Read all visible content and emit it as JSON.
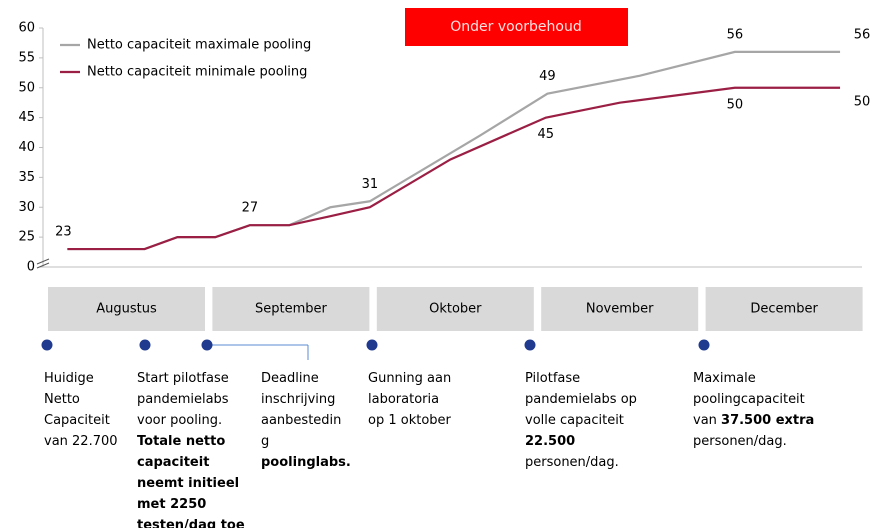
{
  "chart_data": {
    "type": "line",
    "badge": "Onder voorbehoud",
    "ylim": [
      20,
      60
    ],
    "yticks": [
      0,
      25,
      30,
      35,
      40,
      45,
      50,
      55,
      60
    ],
    "axis_break": true,
    "xlim": [
      0,
      5
    ],
    "legend": "top-left",
    "series": [
      {
        "name": "Netto capaciteit maximale pooling",
        "color": "#a6a6a6",
        "x": [
          0.13,
          0.6,
          0.8,
          1.03,
          1.24,
          1.48,
          1.73,
          1.97,
          2.64,
          3.05,
          3.61,
          4.19,
          4.83
        ],
        "values": [
          23,
          23,
          25,
          25,
          27,
          27,
          30,
          31,
          42,
          49,
          52,
          56,
          56
        ],
        "value_labels": [
          "23",
          null,
          null,
          null,
          "27",
          null,
          null,
          "31",
          null,
          "49",
          null,
          "56",
          "56"
        ]
      },
      {
        "name": "Netto capaciteit minimale pooling",
        "color": "#9b1f45",
        "x": [
          0.13,
          0.6,
          0.8,
          1.03,
          1.24,
          1.48,
          1.73,
          1.97,
          2.46,
          3.04,
          3.49,
          4.19,
          4.83
        ],
        "values": [
          23,
          23,
          25,
          25,
          27,
          27,
          28.5,
          30,
          38,
          45,
          47.5,
          50,
          50
        ],
        "value_labels": [
          null,
          null,
          null,
          null,
          null,
          null,
          null,
          null,
          null,
          "45",
          null,
          "50",
          "50"
        ]
      }
    ],
    "categories": [
      "Augustus",
      "September",
      "Oktober",
      "November",
      "December"
    ],
    "milestones": [
      {
        "lines": [
          [
            "Huidige"
          ],
          [
            "Netto"
          ],
          [
            "Capaciteit"
          ],
          [
            "van 22.700"
          ]
        ]
      },
      {
        "lines": [
          [
            "Start pilotfase"
          ],
          [
            "pandemielabs"
          ],
          [
            "voor pooling."
          ],
          [
            {
              "bold": "Totale netto"
            }
          ],
          [
            {
              "bold": "capaciteit"
            }
          ],
          [
            {
              "bold": "neemt initieel"
            }
          ],
          [
            {
              "bold": "met 2250"
            }
          ],
          [
            {
              "bold": "testen/dag toe"
            }
          ]
        ]
      },
      {
        "lines": [
          [
            "Deadline"
          ],
          [
            "inschrijving"
          ],
          [
            "aanbestedin"
          ],
          [
            "g"
          ],
          [
            {
              "bold": "poolinglabs."
            }
          ]
        ]
      },
      {
        "lines": [
          [
            "Gunning aan"
          ],
          [
            "laboratoria"
          ],
          [
            "op 1 oktober"
          ]
        ]
      },
      {
        "lines": [
          [
            "Pilotfase"
          ],
          [
            "pandemielabs op"
          ],
          [
            "volle capaciteit"
          ],
          [
            {
              "bold": "22.500"
            }
          ],
          [
            "personen/dag."
          ]
        ]
      },
      {
        "lines": [
          [
            "Maximale"
          ],
          [
            "poolingcapaciteit"
          ],
          [
            "van ",
            {
              "bold": "37.500 extra"
            }
          ],
          [
            "personen/dag."
          ]
        ]
      }
    ]
  }
}
